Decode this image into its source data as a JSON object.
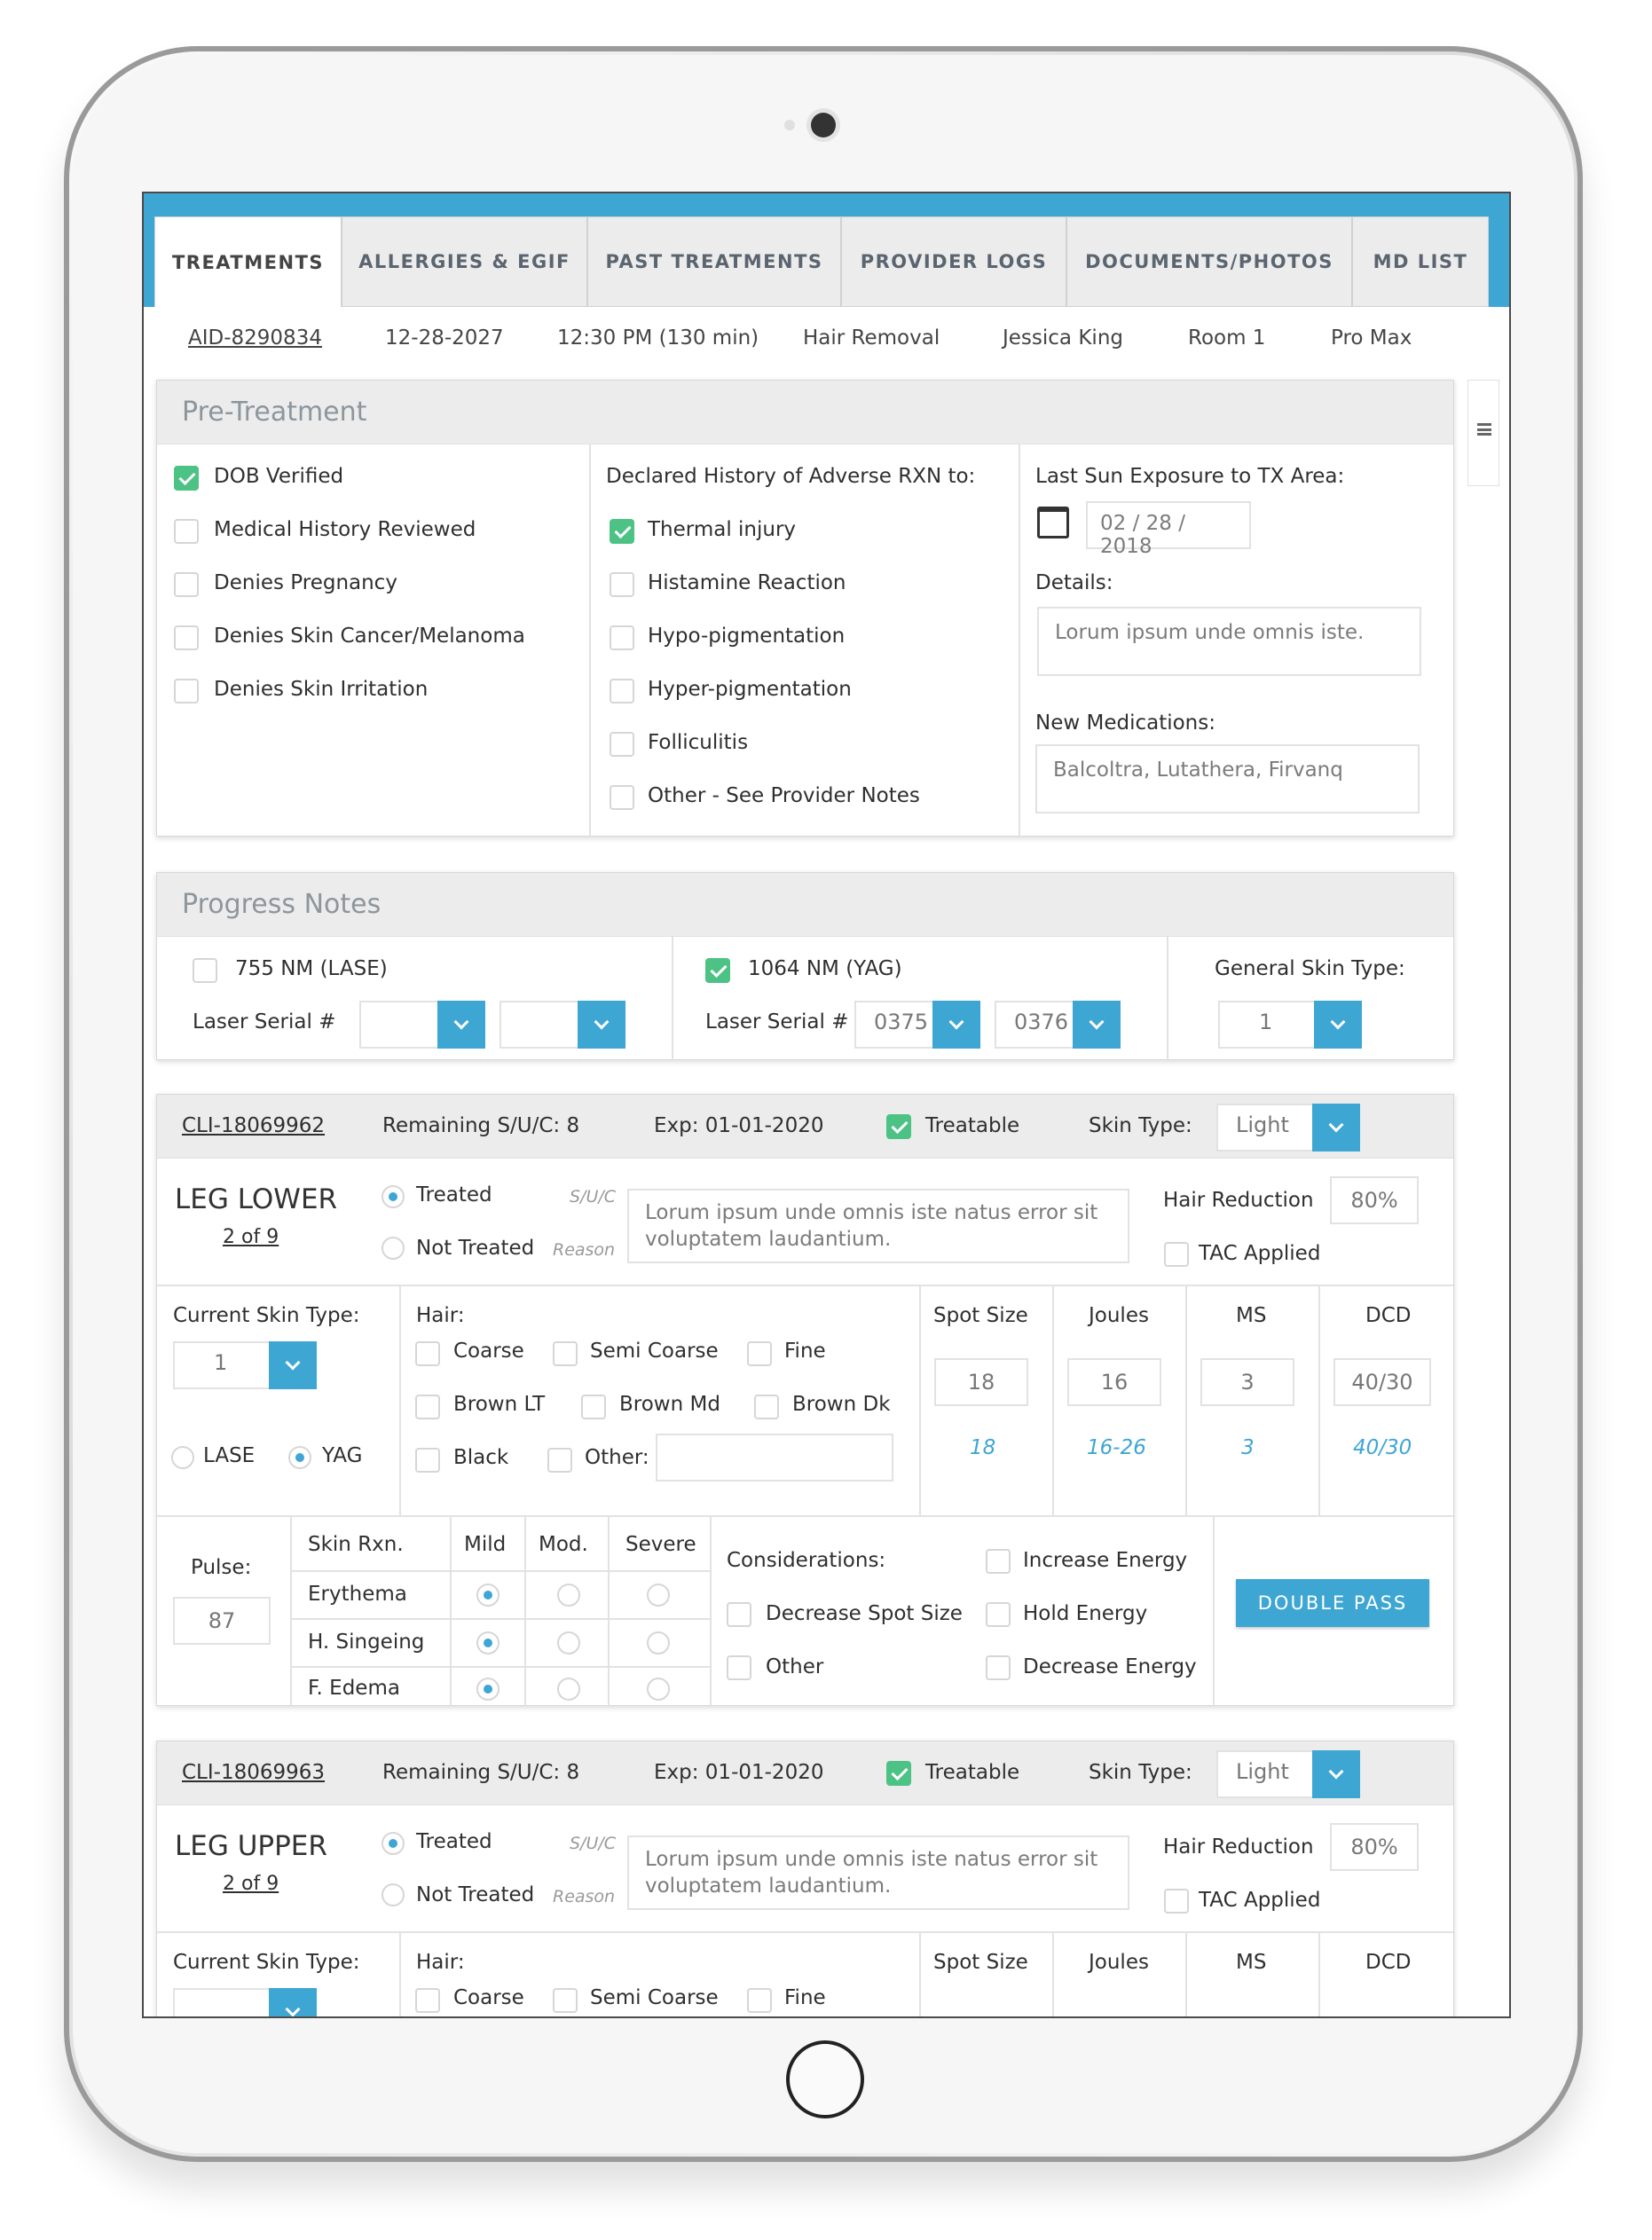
{
  "tabs": [
    "TREATMENTS",
    "ALLERGIES & EGIF",
    "PAST TREATMENTS",
    "PROVIDER LOGS",
    "DOCUMENTS/PHOTOS",
    "MD LIST"
  ],
  "info": {
    "aid": "AID-8290834",
    "date": "12-28-2027",
    "time": "12:30 PM (130 min)",
    "service": "Hair Removal",
    "provider": "Jessica King",
    "room": "Room 1",
    "device": "Pro Max"
  },
  "pre": {
    "title": "Pre-Treatment",
    "checks": [
      {
        "label": "DOB Verified",
        "checked": true
      },
      {
        "label": "Medical History Reviewed",
        "checked": false
      },
      {
        "label": "Denies Pregnancy",
        "checked": false
      },
      {
        "label": "Denies Skin Cancer/Melanoma",
        "checked": false
      },
      {
        "label": "Denies Skin Irritation",
        "checked": false
      }
    ],
    "adverse_title": "Declared History of Adverse RXN to:",
    "adverse": [
      {
        "label": "Thermal injury",
        "checked": true
      },
      {
        "label": "Histamine Reaction",
        "checked": false
      },
      {
        "label": "Hypo-pigmentation",
        "checked": false
      },
      {
        "label": "Hyper-pigmentation",
        "checked": false
      },
      {
        "label": "Folliculitis",
        "checked": false
      },
      {
        "label": "Other - See Provider Notes",
        "checked": false
      }
    ],
    "sun_label": "Last Sun Exposure to TX Area:",
    "sun_date": "02 / 28 / 2018",
    "details_label": "Details:",
    "details_value": "Lorum ipsum unde omnis iste.",
    "meds_label": "New Medications:",
    "meds_value": "Balcoltra, Lutathera, Firvanq"
  },
  "progress": {
    "title": "Progress Notes",
    "lase_label": "755 NM (LASE)",
    "yag_label": "1064 NM (YAG)",
    "serial_label": "Laser Serial #",
    "yag_serial1": "0375",
    "yag_serial2": "0376",
    "skin_label": "General Skin Type:",
    "skin_value": "1"
  },
  "areas": [
    {
      "cli": "CLI-18069962",
      "remaining": "Remaining S/U/C:  8",
      "exp": "Exp:  01-01-2020",
      "treatable": "Treatable",
      "skin_type_label": "Skin Type:",
      "skin_type": "Light",
      "name": "LEG LOWER",
      "count": "2 of 9",
      "treated": "Treated",
      "not_treated": "Not Treated",
      "suc": "S/U/C",
      "reason": "Reason",
      "note": "Lorum ipsum unde omnis iste natus error sit voluptatem laudantium.",
      "hr_label": "Hair Reduction",
      "hr_value": "80%",
      "tac": "TAC Applied",
      "cst_label": "Current Skin Type:",
      "cst_value": "1",
      "lase": "LASE",
      "yag": "YAG",
      "hair_label": "Hair:",
      "hair": [
        "Coarse",
        "Semi Coarse",
        "Fine",
        "Brown LT",
        "Brown Md",
        "Brown Dk",
        "Black"
      ],
      "other": "Other:",
      "params": [
        {
          "label": "Spot Size",
          "value": "18",
          "hint": "18"
        },
        {
          "label": "Joules",
          "value": "16",
          "hint": "16-26"
        },
        {
          "label": "MS",
          "value": "3",
          "hint": "3"
        },
        {
          "label": "DCD",
          "value": "40/30",
          "hint": "40/30"
        }
      ],
      "pulse_label": "Pulse:",
      "pulse": "87",
      "rxn_header": [
        "Skin Rxn.",
        "Mild",
        "Mod.",
        "Severe"
      ],
      "rxn_rows": [
        "Erythema",
        "H. Singeing",
        "F. Edema"
      ],
      "cons_label": "Considerations:",
      "cons": [
        "Increase Energy",
        "Decrease Spot Size",
        "Hold Energy",
        "Other",
        "Decrease Energy"
      ],
      "double_pass": "DOUBLE PASS"
    },
    {
      "cli": "CLI-18069963",
      "remaining": "Remaining S/U/C:  8",
      "exp": "Exp:  01-01-2020",
      "treatable": "Treatable",
      "skin_type_label": "Skin Type:",
      "skin_type": "Light",
      "name": "LEG UPPER",
      "count": "2 of 9",
      "treated": "Treated",
      "not_treated": "Not Treated",
      "suc": "S/U/C",
      "reason": "Reason",
      "note": "Lorum ipsum unde omnis iste natus error sit voluptatem laudantium.",
      "hr_label": "Hair Reduction",
      "hr_value": "80%",
      "tac": "TAC Applied",
      "cst_label": "Current Skin Type:",
      "hair_label": "Hair:",
      "hair": [
        "Coarse",
        "Semi Coarse",
        "Fine"
      ],
      "params": [
        {
          "label": "Spot Size"
        },
        {
          "label": "Joules"
        },
        {
          "label": "MS"
        },
        {
          "label": "DCD"
        }
      ]
    }
  ],
  "colors": {
    "accent": "#3ea6d3",
    "check": "#4cc285"
  },
  "icons": {
    "calendar": "calendar-icon",
    "menu": "menu-icon",
    "chevron": "chevron-down-icon"
  }
}
